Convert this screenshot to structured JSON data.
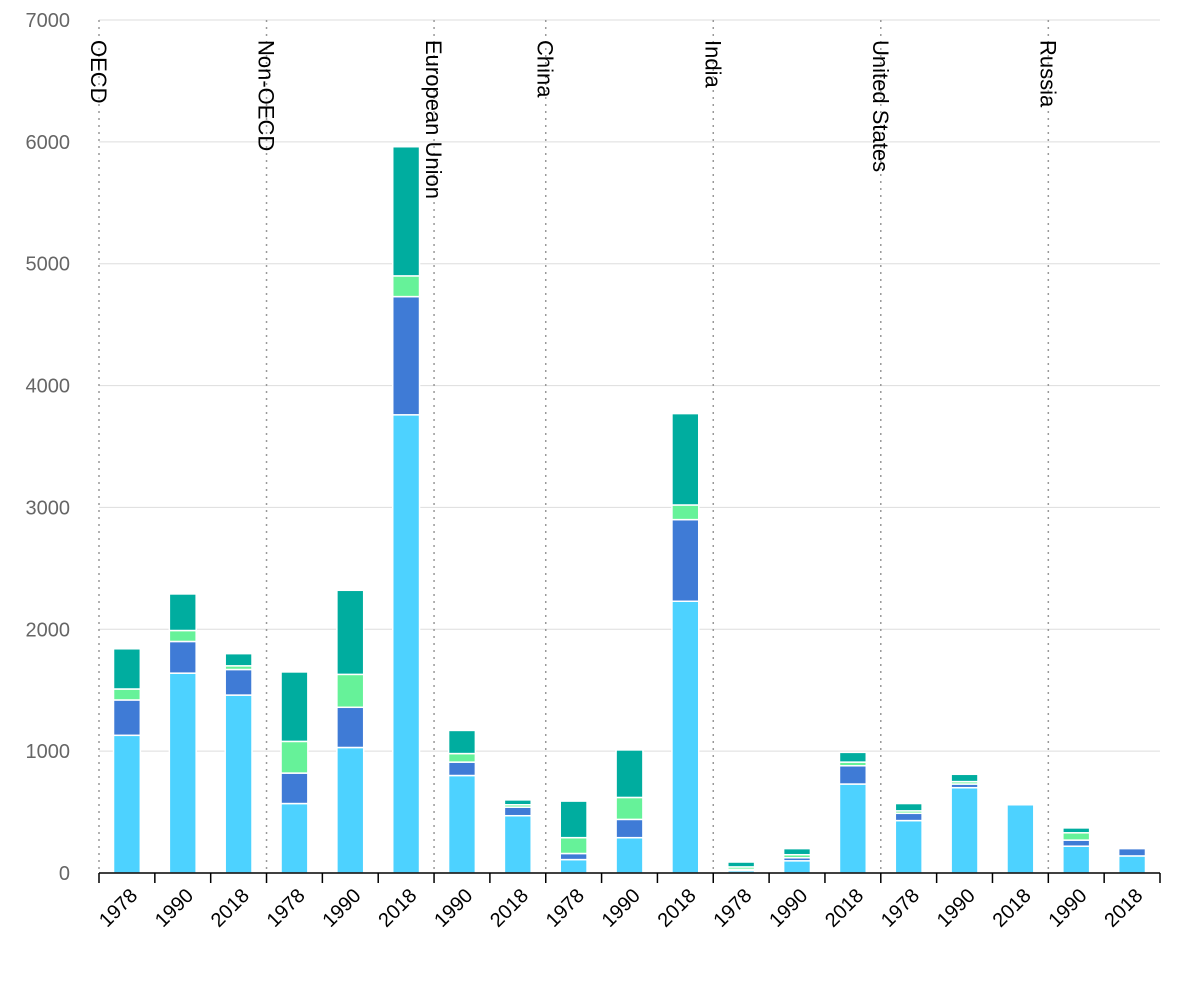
{
  "chart_data": {
    "type": "bar",
    "stacked": true,
    "ylim": [
      0,
      7000
    ],
    "yticks": [
      0,
      1000,
      2000,
      3000,
      4000,
      5000,
      6000,
      7000
    ],
    "grid": true,
    "legend": "none",
    "colors": [
      "#4dd2ff",
      "#3f7bd6",
      "#66f299",
      "#00ad9f"
    ],
    "groups": [
      {
        "label": "OECD",
        "bars": [
          {
            "year": "1978",
            "values": [
              1130,
              290,
              90,
              330
            ]
          },
          {
            "year": "1990",
            "values": [
              1640,
              260,
              90,
              300
            ]
          },
          {
            "year": "2018",
            "values": [
              1460,
              210,
              30,
              100
            ]
          }
        ]
      },
      {
        "label": "Non-OECD",
        "bars": [
          {
            "year": "1978",
            "values": [
              570,
              250,
              260,
              570
            ]
          },
          {
            "year": "1990",
            "values": [
              1030,
              330,
              270,
              690
            ]
          },
          {
            "year": "2018",
            "values": [
              3760,
              970,
              170,
              1060
            ]
          }
        ]
      },
      {
        "label": "European Union",
        "bars": [
          {
            "year": "1990",
            "values": [
              800,
              110,
              70,
              190
            ]
          },
          {
            "year": "2018",
            "values": [
              470,
              70,
              20,
              40
            ]
          }
        ]
      },
      {
        "label": "China",
        "bars": [
          {
            "year": "1978",
            "values": [
              110,
              50,
              130,
              300
            ]
          },
          {
            "year": "1990",
            "values": [
              290,
              150,
              180,
              390
            ]
          },
          {
            "year": "2018",
            "values": [
              2230,
              670,
              120,
              750
            ]
          }
        ]
      },
      {
        "label": "India",
        "bars": [
          {
            "year": "1978",
            "values": [
              20,
              10,
              20,
              40
            ]
          },
          {
            "year": "1990",
            "values": [
              100,
              25,
              25,
              50
            ]
          },
          {
            "year": "2018",
            "values": [
              730,
              150,
              30,
              80
            ]
          }
        ]
      },
      {
        "label": "United States",
        "bars": [
          {
            "year": "1978",
            "values": [
              430,
              60,
              20,
              60
            ]
          },
          {
            "year": "1990",
            "values": [
              700,
              30,
              20,
              60
            ]
          },
          {
            "year": "2018",
            "values": [
              560,
              0,
              0,
              0
            ]
          }
        ]
      },
      {
        "label": "Russia",
        "bars": [
          {
            "year": "1990",
            "values": [
              220,
              50,
              60,
              40
            ]
          },
          {
            "year": "2018",
            "values": [
              140,
              60,
              0,
              0
            ]
          }
        ]
      }
    ]
  }
}
